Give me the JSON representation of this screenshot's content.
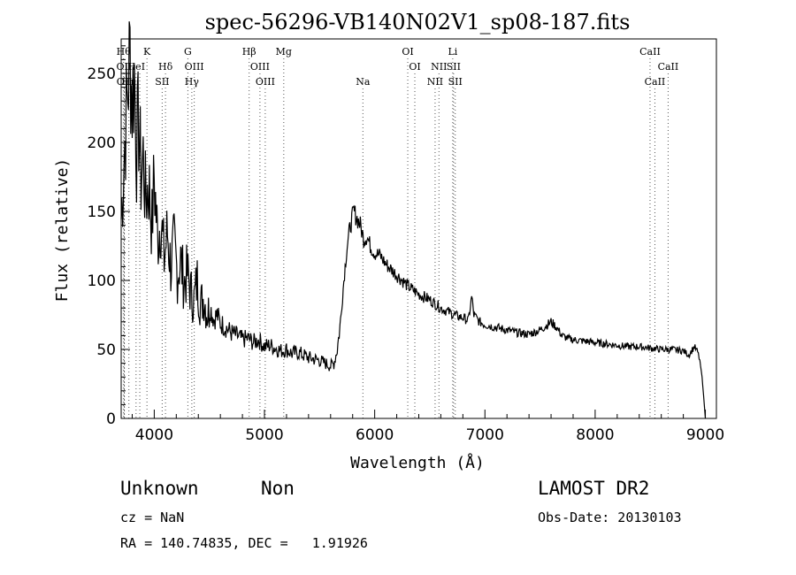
{
  "chart_data": {
    "type": "line",
    "title": "spec-56296-VB140N02V1_sp08-187.fits",
    "xlabel": "Wavelength (Å)",
    "ylabel": "Flux (relative)",
    "xlim": [
      3700,
      9100
    ],
    "ylim": [
      0,
      275
    ],
    "xticks": [
      4000,
      5000,
      6000,
      7000,
      8000,
      9000
    ],
    "yticks": [
      0,
      50,
      100,
      150,
      200,
      250
    ],
    "grid": false,
    "series": [
      {
        "x": [
          3700,
          3720,
          3740,
          3760,
          3780,
          3800,
          3820,
          3840,
          3860,
          3880,
          3900,
          3920,
          3950,
          3980,
          4000,
          4030,
          4060,
          4090,
          4120,
          4150,
          4180,
          4210,
          4240,
          4270,
          4300,
          4330,
          4360,
          4390,
          4420,
          4450,
          4480,
          4510,
          4540,
          4570,
          4600,
          4650,
          4700,
          4750,
          4800,
          4850,
          4900,
          4950,
          5000,
          5050,
          5100,
          5150,
          5200,
          5250,
          5300,
          5350,
          5400,
          5450,
          5500,
          5550,
          5600,
          5630,
          5660,
          5690,
          5720,
          5750,
          5780,
          5810,
          5840,
          5870,
          5900,
          5930,
          5960,
          6000,
          6050,
          6100,
          6150,
          6200,
          6250,
          6300,
          6350,
          6400,
          6450,
          6500,
          6550,
          6600,
          6650,
          6700,
          6750,
          6800,
          6850,
          6880,
          6900,
          6950,
          7000,
          7050,
          7100,
          7150,
          7200,
          7300,
          7400,
          7500,
          7600,
          7650,
          7700,
          7750,
          7800,
          7900,
          8000,
          8100,
          8200,
          8300,
          8400,
          8500,
          8600,
          8700,
          8800,
          8850,
          8900,
          8930,
          8950,
          8970,
          8990,
          9000
        ],
        "y": [
          145,
          178,
          212,
          238,
          265,
          230,
          250,
          195,
          215,
          175,
          190,
          160,
          170,
          140,
          175,
          130,
          145,
          115,
          135,
          110,
          125,
          105,
          115,
          98,
          105,
          92,
          85,
          100,
          82,
          88,
          76,
          80,
          72,
          75,
          69,
          66,
          62,
          60,
          57,
          58,
          55,
          57,
          52,
          53,
          51,
          49,
          50,
          47,
          48,
          46,
          44,
          43,
          42,
          40,
          38,
          40,
          50,
          70,
          100,
          125,
          140,
          150,
          145,
          140,
          130,
          132,
          125,
          120,
          118,
          112,
          108,
          104,
          100,
          96,
          93,
          90,
          88,
          86,
          83,
          80,
          78,
          76,
          74,
          73,
          71,
          88,
          75,
          70,
          68,
          67,
          66,
          65,
          64,
          62,
          61,
          64,
          70,
          66,
          60,
          58,
          57,
          56,
          55,
          54,
          53,
          52,
          52,
          51,
          50,
          50,
          49,
          46,
          52,
          48,
          42,
          30,
          10,
          0
        ]
      }
    ],
    "annotations": [
      {
        "wavelength": 3722,
        "label": "Hθ",
        "row": 0
      },
      {
        "wavelength": 3727,
        "label": "OII",
        "row": 1
      },
      {
        "wavelength": 3729,
        "label": "OII",
        "row": 2
      },
      {
        "wavelength": 3770,
        "label": "Hη",
        "row": 2
      },
      {
        "wavelength": 3835,
        "label": "HeI",
        "row": 1
      },
      {
        "wavelength": 3869,
        "label": "",
        "row": 1
      },
      {
        "wavelength": 3934,
        "label": "K",
        "row": 0
      },
      {
        "wavelength": 4102,
        "label": "Hδ",
        "row": 1
      },
      {
        "wavelength": 4072,
        "label": "SII",
        "row": 2
      },
      {
        "wavelength": 4305,
        "label": "G",
        "row": 0
      },
      {
        "wavelength": 4363,
        "label": "OIII",
        "row": 1
      },
      {
        "wavelength": 4341,
        "label": "Hγ",
        "row": 2
      },
      {
        "wavelength": 4861,
        "label": "Hβ",
        "row": 0
      },
      {
        "wavelength": 4959,
        "label": "OIII",
        "row": 1
      },
      {
        "wavelength": 5007,
        "label": "OIII",
        "row": 2
      },
      {
        "wavelength": 5175,
        "label": "Mg",
        "row": 0
      },
      {
        "wavelength": 5893,
        "label": "Na",
        "row": 2
      },
      {
        "wavelength": 6300,
        "label": "OI",
        "row": 0
      },
      {
        "wavelength": 6364,
        "label": "OI",
        "row": 1
      },
      {
        "wavelength": 6548,
        "label": "NII",
        "row": 2
      },
      {
        "wavelength": 6583,
        "label": "NII",
        "row": 1
      },
      {
        "wavelength": 6708,
        "label": "Li",
        "row": 0
      },
      {
        "wavelength": 6716,
        "label": "SII",
        "row": 1
      },
      {
        "wavelength": 6731,
        "label": "SII",
        "row": 2
      },
      {
        "wavelength": 8498,
        "label": "CaII",
        "row": 0
      },
      {
        "wavelength": 8542,
        "label": "CaII",
        "row": 2
      },
      {
        "wavelength": 8662,
        "label": "CaII",
        "row": 1
      }
    ]
  },
  "info": {
    "class_label": "Unknown",
    "subclass_label": "Non",
    "survey": "LAMOST DR2",
    "cz": "cz = NaN",
    "obs_date": "Obs-Date: 20130103",
    "coords": "RA = 140.74835, DEC =   1.91926"
  }
}
